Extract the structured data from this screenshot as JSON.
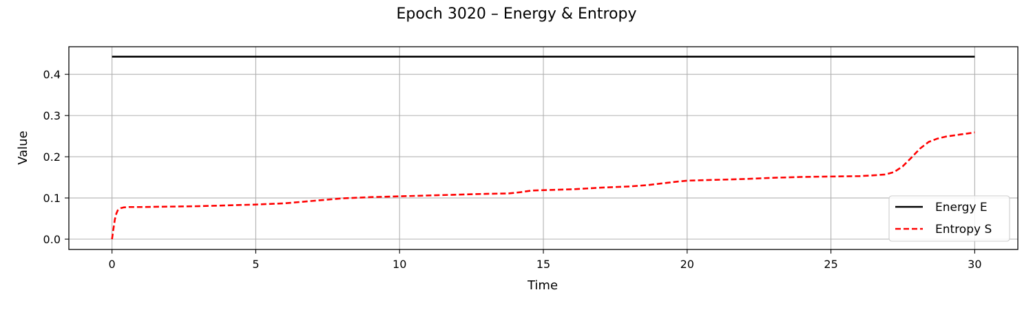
{
  "chart_data": {
    "type": "line",
    "title": "Epoch 3020 – Energy & Entropy",
    "xlabel": "Time",
    "ylabel": "Value",
    "xlim": [
      -1.5,
      31.5
    ],
    "ylim": [
      -0.025,
      0.467
    ],
    "xticks": [
      0,
      5,
      10,
      15,
      20,
      25,
      30
    ],
    "yticks": [
      0.0,
      0.1,
      0.2,
      0.3,
      0.4
    ],
    "xtick_labels": [
      "0",
      "5",
      "10",
      "15",
      "20",
      "25",
      "30"
    ],
    "ytick_labels": [
      "0.0",
      "0.1",
      "0.2",
      "0.3",
      "0.4"
    ],
    "grid": true,
    "legend_position": "lower-right",
    "series": [
      {
        "name": "Energy E",
        "color": "#000000",
        "style": "solid",
        "x": [
          0,
          5,
          10,
          15,
          20,
          25,
          30
        ],
        "y": [
          0.443,
          0.443,
          0.443,
          0.443,
          0.443,
          0.443,
          0.443
        ]
      },
      {
        "name": "Entropy S",
        "color": "#ff0000",
        "style": "dashed",
        "x": [
          0,
          0.05,
          0.1,
          0.15,
          0.2,
          0.3,
          0.4,
          0.6,
          1,
          2,
          3,
          4,
          5,
          6,
          7,
          8,
          9,
          10,
          11,
          12,
          13,
          13.8,
          14.2,
          14.6,
          15,
          16,
          17,
          18,
          18.6,
          19.2,
          19.7,
          20,
          21,
          22,
          23,
          24,
          25,
          26,
          26.5,
          26.9,
          27.2,
          27.5,
          27.8,
          28.1,
          28.4,
          28.7,
          29,
          29.5,
          30
        ],
        "y": [
          0.0,
          0.025,
          0.048,
          0.062,
          0.07,
          0.075,
          0.077,
          0.078,
          0.078,
          0.079,
          0.08,
          0.082,
          0.084,
          0.087,
          0.093,
          0.099,
          0.102,
          0.104,
          0.106,
          0.108,
          0.11,
          0.111,
          0.114,
          0.118,
          0.119,
          0.121,
          0.125,
          0.128,
          0.131,
          0.136,
          0.14,
          0.142,
          0.144,
          0.146,
          0.149,
          0.151,
          0.152,
          0.153,
          0.155,
          0.157,
          0.163,
          0.177,
          0.198,
          0.22,
          0.236,
          0.244,
          0.249,
          0.254,
          0.259
        ]
      }
    ]
  }
}
